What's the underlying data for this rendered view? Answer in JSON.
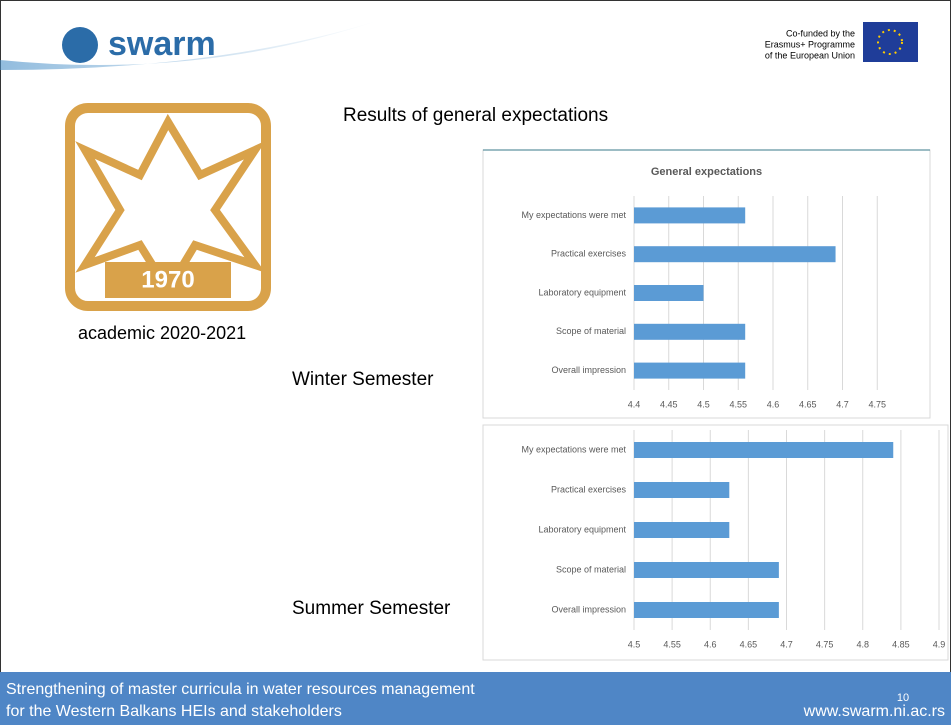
{
  "header": {
    "logo_text": "swarm",
    "cofunded": [
      "Co-funded by the",
      "Erasmus+ Programme",
      "of the European Union"
    ]
  },
  "emblem_year": "1970",
  "slide_title": "Results of general expectations",
  "academic_year": "academic 2020-2021",
  "winter_label": "Winter Semester",
  "summer_label": "Summer Semester",
  "chart_data": [
    {
      "type": "bar",
      "orientation": "horizontal",
      "title": "General expectations",
      "categories": [
        "My expectations were met",
        "Practical exercises",
        "Laboratory equipment",
        "Scope of material",
        "Overall impression"
      ],
      "values": [
        4.56,
        4.69,
        4.5,
        4.56,
        4.56
      ],
      "color": "#5b9bd5",
      "xlim": [
        4.4,
        4.8
      ],
      "xticks": [
        4.4,
        4.45,
        4.5,
        4.55,
        4.6,
        4.65,
        4.7,
        4.75
      ],
      "grid": true
    },
    {
      "type": "bar",
      "orientation": "horizontal",
      "categories": [
        "My expectations were met",
        "Practical exercises",
        "Laboratory equipment",
        "Scope of material",
        "Overall impression"
      ],
      "values": [
        4.84,
        4.625,
        4.625,
        4.69,
        4.69
      ],
      "color": "#5b9bd5",
      "xlim": [
        4.5,
        4.9
      ],
      "xticks": [
        4.5,
        4.55,
        4.6,
        4.65,
        4.7,
        4.75,
        4.8,
        4.85,
        4.9
      ],
      "grid": true
    }
  ],
  "footer": {
    "lines": [
      "Strengthening of master curricula in water resources  management",
      "for the Western Balkans HEIs and stakeholders"
    ],
    "page": "10",
    "url": "www.swarm.ni.ac.rs"
  }
}
